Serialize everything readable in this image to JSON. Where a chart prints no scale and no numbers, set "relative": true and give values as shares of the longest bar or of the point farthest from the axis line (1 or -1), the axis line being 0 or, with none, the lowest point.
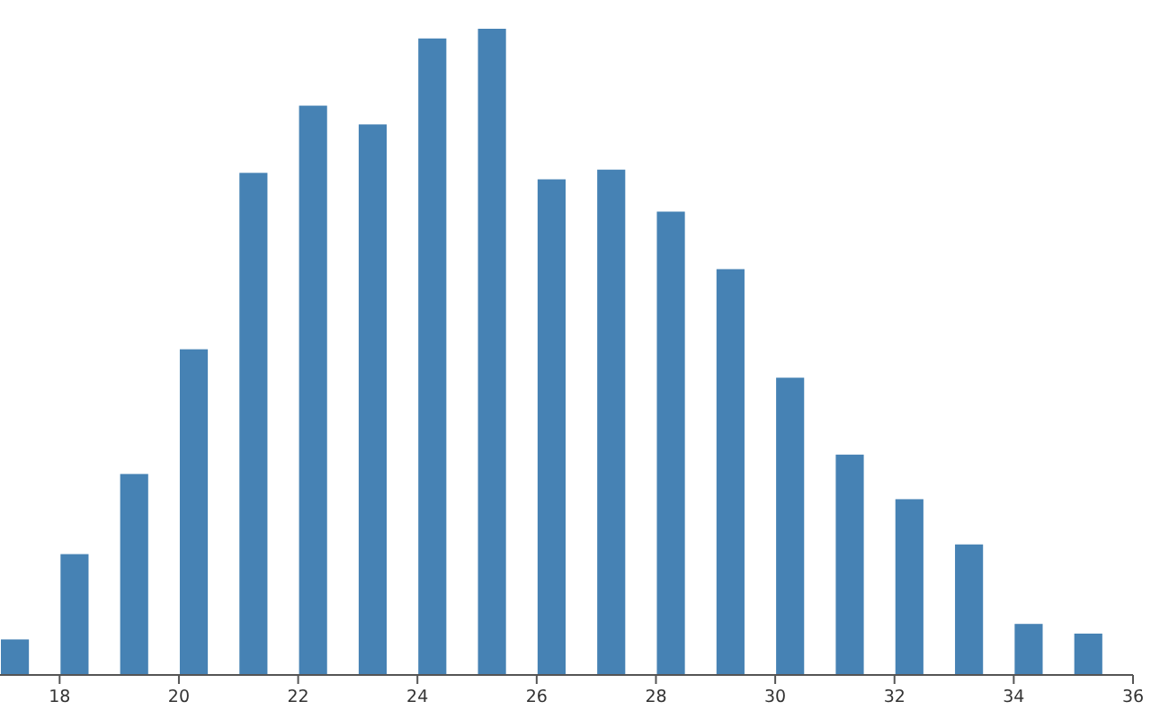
{
  "chart_data": {
    "type": "bar",
    "relative": true,
    "color": "#4682b4",
    "x": [
      17.25,
      18.25,
      19.25,
      20.25,
      21.25,
      22.25,
      23.25,
      24.25,
      25.25,
      26.25,
      27.25,
      28.25,
      29.25,
      30.25,
      31.25,
      32.25,
      33.25,
      34.25,
      35.25
    ],
    "values": [
      0.055,
      0.187,
      0.311,
      0.504,
      0.777,
      0.881,
      0.852,
      0.985,
      1,
      0.767,
      0.782,
      0.717,
      0.628,
      0.46,
      0.341,
      0.272,
      0.202,
      0.079,
      0.064
    ],
    "xlim": [
      17,
      36
    ],
    "xticks": [
      18,
      20,
      22,
      24,
      26,
      28,
      30,
      32,
      34,
      36
    ]
  }
}
